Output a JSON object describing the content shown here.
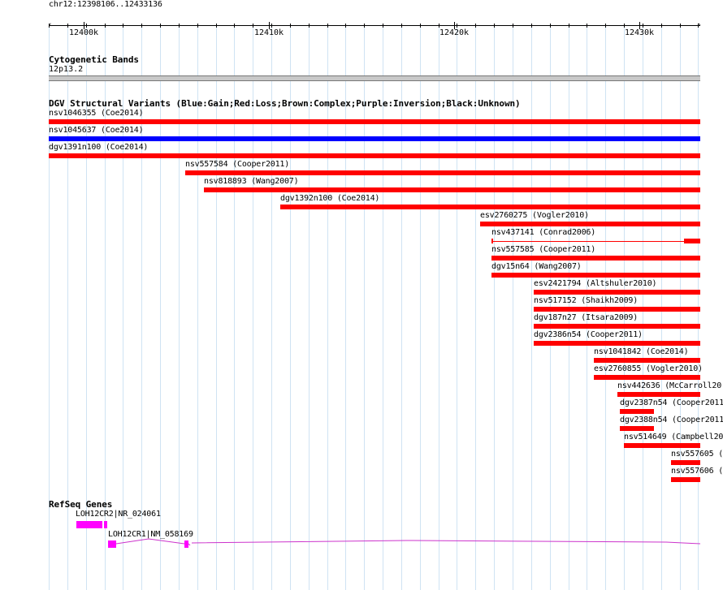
{
  "ruler": {
    "region": "chr12:12398106..12433136",
    "ticks": [
      "12400k",
      "12410k",
      "12420k",
      "12430k"
    ]
  },
  "colors": {
    "gain": "#0000ff",
    "loss": "#ff0000",
    "gene": "#ff00ff",
    "grid": "#cfe3f3"
  },
  "tracks": {
    "cytoband": {
      "title": "Cytogenetic Bands",
      "band": "12p13.2"
    },
    "dgv": {
      "title": "DGV Structural Variants (Blue:Gain;Red:Loss;Brown:Complex;Purple:Inversion;Black:Unknown)",
      "variants": [
        {
          "label": "nsv1046355 (Coe2014)",
          "type": "loss"
        },
        {
          "label": "nsv1045637 (Coe2014)",
          "type": "gain"
        },
        {
          "label": "dgv1391n100 (Coe2014)",
          "type": "loss"
        },
        {
          "label": "nsv557584 (Cooper2011)",
          "type": "loss"
        },
        {
          "label": "nsv818893 (Wang2007)",
          "type": "loss"
        },
        {
          "label": "dgv1392n100 (Coe2014)",
          "type": "loss"
        },
        {
          "label": "esv2760275 (Vogler2010)",
          "type": "loss"
        },
        {
          "label": "nsv437141 (Conrad2006)",
          "type": "loss"
        },
        {
          "label": "nsv557585 (Cooper2011)",
          "type": "loss"
        },
        {
          "label": "dgv15n64 (Wang2007)",
          "type": "loss"
        },
        {
          "label": "esv2421794 (Altshuler2010)",
          "type": "loss"
        },
        {
          "label": "nsv517152 (Shaikh2009)",
          "type": "loss"
        },
        {
          "label": "dgv187n27 (Itsara2009)",
          "type": "loss"
        },
        {
          "label": "dgv2386n54 (Cooper2011)",
          "type": "loss"
        },
        {
          "label": "nsv1041842 (Coe2014)",
          "type": "loss"
        },
        {
          "label": "esv2760855 (Vogler2010)",
          "type": "loss"
        },
        {
          "label": "nsv442636 (McCarroll20",
          "type": "loss"
        },
        {
          "label": "dgv2387n54 (Cooper2011",
          "type": "loss"
        },
        {
          "label": "dgv2388n54 (Cooper2011",
          "type": "loss"
        },
        {
          "label": "nsv514649 (Campbell20",
          "type": "loss"
        },
        {
          "label": "nsv557605 (",
          "type": "loss"
        },
        {
          "label": "nsv557606 (",
          "type": "loss"
        }
      ]
    },
    "refseq": {
      "title": "RefSeq Genes",
      "genes": [
        {
          "label": "LOH12CR2|NR_024061"
        },
        {
          "label": "LOH12CR1|NM_058169"
        }
      ]
    }
  }
}
